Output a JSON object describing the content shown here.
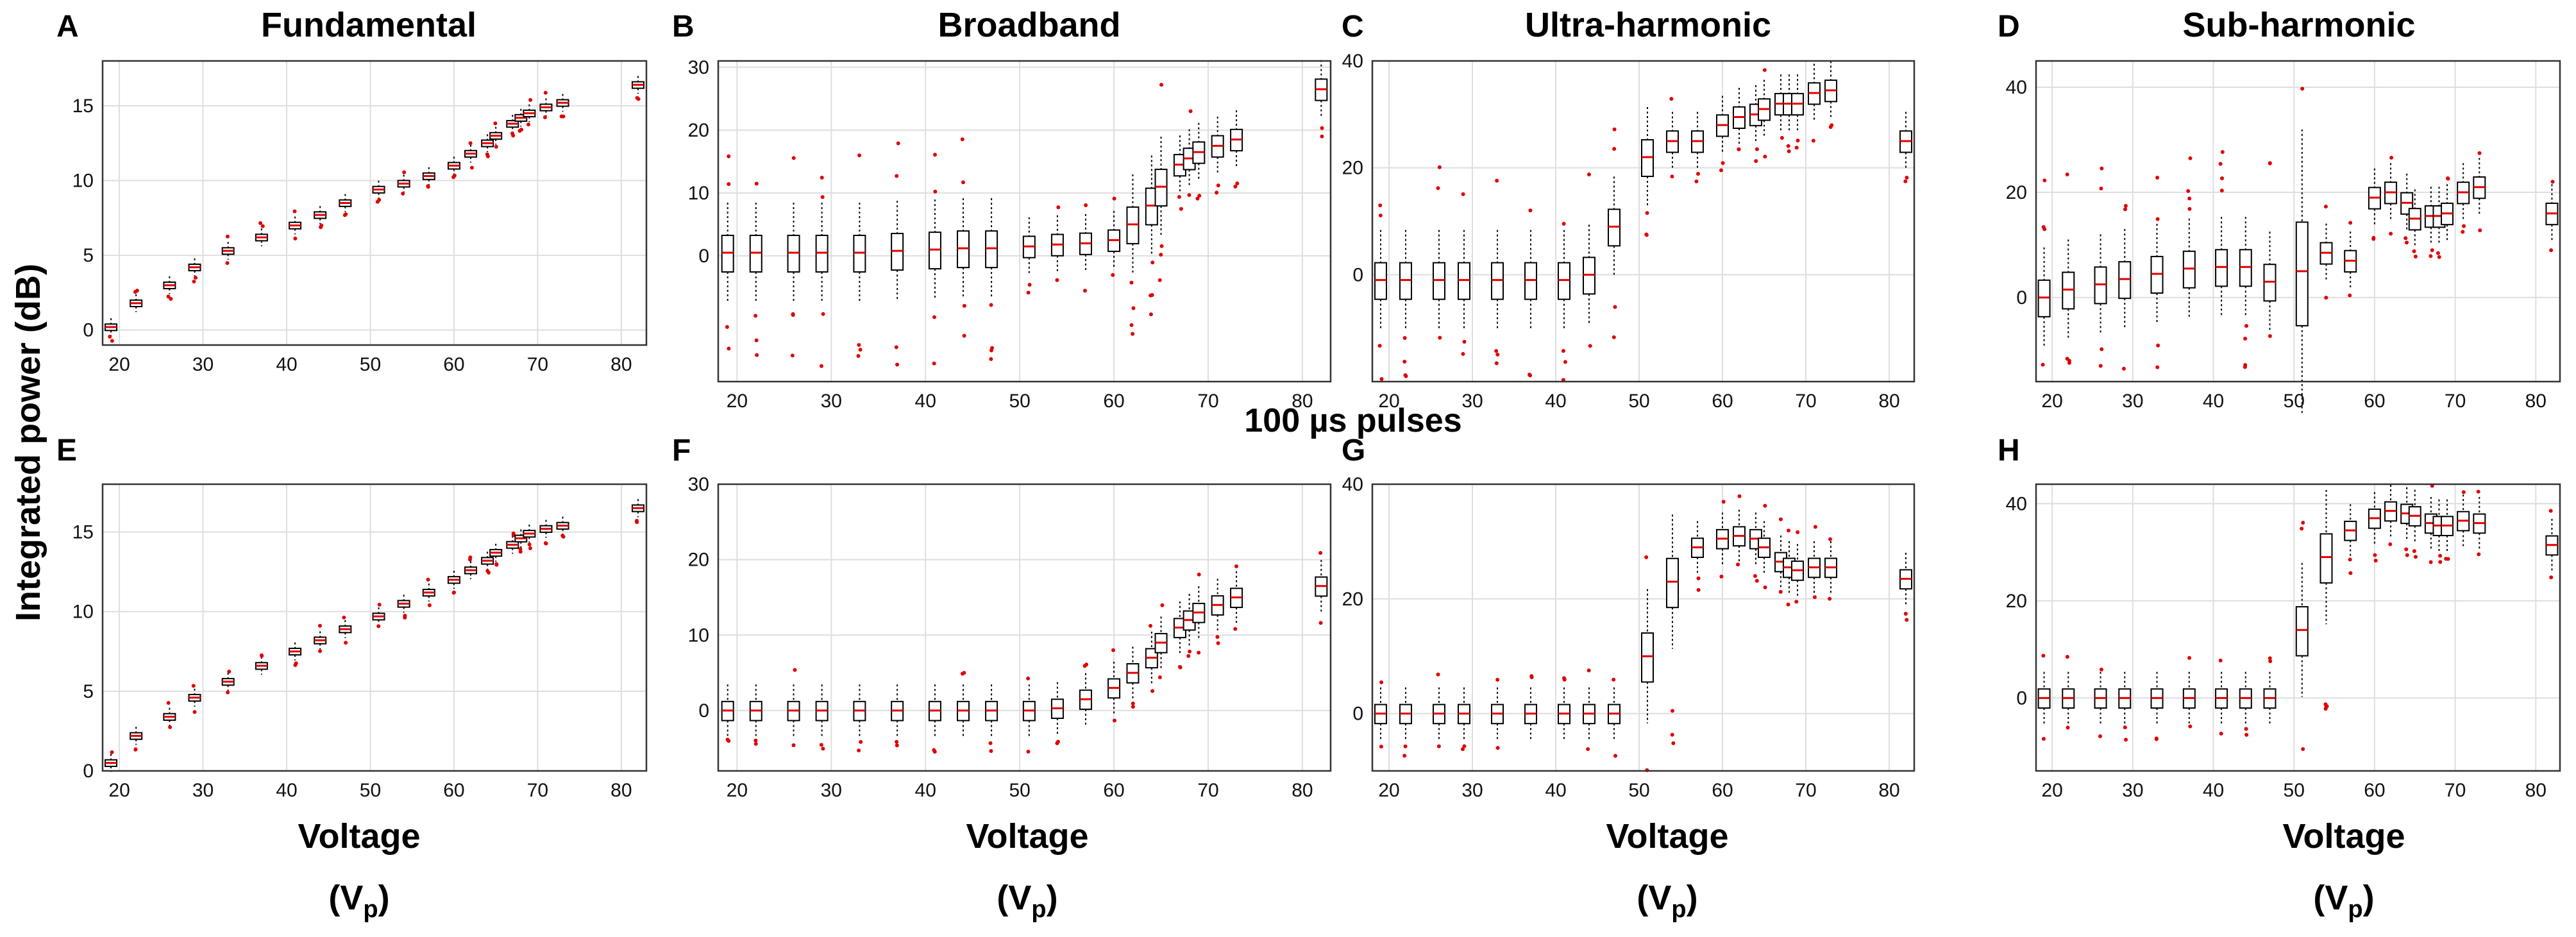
{
  "figure": {
    "ylabel": "Integrated power (dB)",
    "middle_label": "100 µs pulses",
    "xlabel_line1": "Voltage",
    "xlabel_line2_base": "(V",
    "xlabel_line2_sub": "p",
    "xlabel_line2_end": ")"
  },
  "colors": {
    "box": "#000000",
    "median": "#e00000",
    "outlier": "#e00000",
    "whisker": "#000000"
  },
  "chart_data": [
    {
      "id": "A",
      "type": "box",
      "letter": "A",
      "title": "Fundamental",
      "xlim": [
        18,
        83
      ],
      "ylim": [
        -1,
        18
      ],
      "xticks": [
        20,
        30,
        40,
        50,
        60,
        70,
        80
      ],
      "yticks": [
        0,
        5,
        10,
        15
      ],
      "x": [
        19,
        22,
        26,
        29,
        33,
        37,
        41,
        44,
        47,
        51,
        54,
        57,
        60,
        62,
        64,
        65,
        67,
        68,
        69,
        71,
        73,
        82
      ],
      "median": [
        0.2,
        1.8,
        3.0,
        4.2,
        5.3,
        6.2,
        7.0,
        7.7,
        8.5,
        9.4,
        9.8,
        10.3,
        11.0,
        11.8,
        12.5,
        13.0,
        13.8,
        14.2,
        14.5,
        14.9,
        15.2,
        16.4
      ]
    },
    {
      "id": "B",
      "type": "box",
      "letter": "B",
      "title": "Broadband",
      "xlim": [
        18,
        83
      ],
      "ylim": [
        -20,
        31
      ],
      "xticks": [
        20,
        30,
        40,
        50,
        60,
        70,
        80
      ],
      "yticks": [
        0,
        10,
        20,
        30
      ],
      "x": [
        19,
        22,
        26,
        29,
        33,
        37,
        41,
        44,
        47,
        51,
        54,
        57,
        60,
        62,
        64,
        65,
        67,
        68,
        69,
        71,
        73,
        82
      ],
      "median": [
        0.5,
        0.5,
        0.5,
        0.5,
        0.5,
        0.8,
        1.0,
        1.2,
        1.2,
        1.5,
        1.8,
        2.0,
        2.5,
        5.0,
        8.0,
        11.0,
        14.5,
        15.5,
        16.5,
        17.5,
        18.5,
        26.5
      ]
    },
    {
      "id": "C",
      "type": "box",
      "letter": "C",
      "title": "Ultra-harmonic",
      "xlim": [
        18,
        83
      ],
      "ylim": [
        -20,
        40
      ],
      "xticks": [
        20,
        30,
        40,
        50,
        60,
        70,
        80
      ],
      "yticks": [
        0,
        20,
        40
      ],
      "x": [
        19,
        22,
        26,
        29,
        33,
        37,
        41,
        44,
        47,
        51,
        54,
        57,
        60,
        62,
        64,
        65,
        67,
        68,
        69,
        71,
        73,
        82
      ],
      "median": [
        -1,
        -1,
        -1,
        -1,
        -1,
        -1,
        -1,
        0,
        9,
        22,
        25,
        25,
        28,
        29.5,
        30,
        31,
        32,
        32,
        32,
        34,
        34.5,
        25
      ]
    },
    {
      "id": "D",
      "type": "box",
      "letter": "D",
      "title": "Sub-harmonic",
      "xlim": [
        18,
        83
      ],
      "ylim": [
        -16,
        45
      ],
      "xticks": [
        20,
        30,
        40,
        50,
        60,
        70,
        80
      ],
      "yticks": [
        0,
        20,
        40
      ],
      "x": [
        19,
        22,
        26,
        29,
        33,
        37,
        41,
        44,
        47,
        51,
        54,
        57,
        60,
        62,
        64,
        65,
        67,
        68,
        69,
        71,
        73,
        82
      ],
      "median": [
        0,
        1.5,
        2.5,
        3.5,
        4.5,
        5.5,
        5.8,
        5.8,
        3,
        5,
        8.5,
        7,
        19,
        20,
        18,
        15,
        15.5,
        15.5,
        16,
        20,
        21,
        16
      ]
    },
    {
      "id": "E",
      "type": "box",
      "letter": "E",
      "title": "",
      "xlim": [
        18,
        83
      ],
      "ylim": [
        0,
        18
      ],
      "xticks": [
        20,
        30,
        40,
        50,
        60,
        70,
        80
      ],
      "yticks": [
        0,
        5,
        10,
        15
      ],
      "x": [
        19,
        22,
        26,
        29,
        33,
        37,
        41,
        44,
        47,
        51,
        54,
        57,
        60,
        62,
        64,
        65,
        67,
        68,
        69,
        71,
        73,
        82
      ],
      "median": [
        0.5,
        2.2,
        3.4,
        4.6,
        5.6,
        6.6,
        7.5,
        8.2,
        8.9,
        9.7,
        10.5,
        11.2,
        12.0,
        12.6,
        13.2,
        13.7,
        14.2,
        14.6,
        14.9,
        15.2,
        15.4,
        16.5
      ]
    },
    {
      "id": "F",
      "type": "box",
      "letter": "F",
      "title": "",
      "xlim": [
        18,
        83
      ],
      "ylim": [
        -8,
        30
      ],
      "xticks": [
        20,
        30,
        40,
        50,
        60,
        70,
        80
      ],
      "yticks": [
        0,
        10,
        20,
        30
      ],
      "x": [
        19,
        22,
        26,
        29,
        33,
        37,
        41,
        44,
        47,
        51,
        54,
        57,
        60,
        62,
        64,
        65,
        67,
        68,
        69,
        71,
        73,
        82
      ],
      "median": [
        0,
        0,
        0,
        0,
        0,
        0,
        0,
        0,
        0,
        0,
        0.3,
        1.5,
        3,
        5,
        7,
        9,
        11,
        12,
        13,
        14,
        15,
        16.5
      ]
    },
    {
      "id": "G",
      "type": "box",
      "letter": "G",
      "title": "",
      "xlim": [
        18,
        83
      ],
      "ylim": [
        -10,
        40
      ],
      "xticks": [
        20,
        30,
        40,
        50,
        60,
        70,
        80
      ],
      "yticks": [
        0,
        20,
        40
      ],
      "x": [
        19,
        22,
        26,
        29,
        33,
        37,
        41,
        44,
        47,
        51,
        54,
        57,
        60,
        62,
        64,
        65,
        67,
        68,
        69,
        71,
        73,
        82
      ],
      "median": [
        0,
        0,
        0,
        0,
        0,
        0,
        0,
        0,
        0,
        10,
        23,
        29,
        30.5,
        31,
        30.5,
        29,
        26.5,
        25.5,
        25,
        25.5,
        25.5,
        23.5
      ]
    },
    {
      "id": "H",
      "type": "box",
      "letter": "H",
      "title": "",
      "xlim": [
        18,
        83
      ],
      "ylim": [
        -15,
        44
      ],
      "xticks": [
        20,
        30,
        40,
        50,
        60,
        70,
        80
      ],
      "yticks": [
        0,
        20,
        40
      ],
      "x": [
        19,
        22,
        26,
        29,
        33,
        37,
        41,
        44,
        47,
        51,
        54,
        57,
        60,
        62,
        64,
        65,
        67,
        68,
        69,
        71,
        73,
        82
      ],
      "median": [
        0,
        0,
        0,
        0,
        0,
        0,
        0,
        0,
        0,
        14,
        29,
        34.5,
        37,
        38.5,
        38,
        37.5,
        36,
        35.5,
        35.5,
        36.5,
        36,
        31.5
      ]
    }
  ]
}
